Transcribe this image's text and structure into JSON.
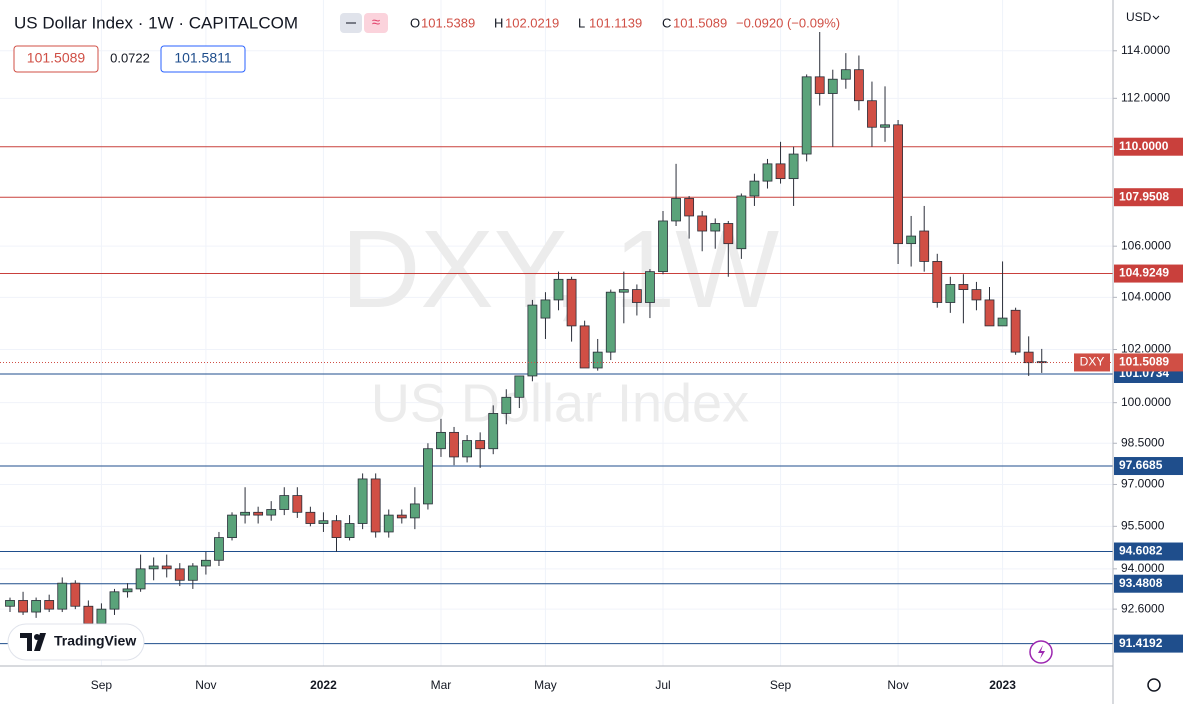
{
  "header": {
    "title": "US Dollar Index · 1W · CAPITALCOM",
    "ohlc": [
      {
        "key": "O",
        "value": "101.5389"
      },
      {
        "key": "H",
        "value": "102.0219"
      },
      {
        "key": "L",
        "value": "101.1139"
      },
      {
        "key": "C",
        "value": "101.5089"
      }
    ],
    "change": "−0.0920 (−0.09%)",
    "sell": "101.5089",
    "spread": "0.0722",
    "buy": "101.5811",
    "currency": "USD",
    "brand": "TradingView"
  },
  "chart_data": {
    "type": "candlestick",
    "watermark": "DXY, 1W",
    "watermark_sub": "US Dollar Index",
    "log_scale": true,
    "grid": true,
    "up_color": "#5aa37a",
    "down_color": "#d04f45",
    "categories": [
      null,
      null,
      null,
      null,
      null,
      null,
      null,
      "Sep",
      null,
      null,
      null,
      null,
      null,
      null,
      null,
      "Nov",
      null,
      null,
      null,
      null,
      null,
      null,
      null,
      null,
      "2022",
      null,
      null,
      null,
      null,
      null,
      null,
      null,
      null,
      "Mar",
      null,
      null,
      null,
      null,
      null,
      null,
      null,
      "May",
      null,
      null,
      null,
      null,
      null,
      null,
      null,
      null,
      "Jul",
      null,
      null,
      null,
      null,
      null,
      null,
      null,
      null,
      "Sep",
      null,
      null,
      null,
      null,
      null,
      null,
      null,
      null,
      "Nov",
      null,
      null,
      null,
      null,
      null,
      null,
      null,
      "2023",
      null,
      null,
      null
    ],
    "open": [
      92.7,
      92.9,
      92.5,
      92.9,
      92.6,
      93.5,
      92.7,
      92.1,
      92.6,
      93.2,
      93.3,
      94.0,
      94.1,
      94.0,
      93.6,
      94.1,
      94.3,
      95.1,
      95.9,
      96.0,
      95.9,
      96.1,
      96.6,
      96.0,
      95.6,
      95.7,
      95.1,
      95.6,
      97.2,
      95.3,
      95.9,
      95.8,
      96.3,
      98.3,
      98.9,
      98.0,
      98.6,
      98.3,
      99.6,
      100.2,
      101.0,
      103.2,
      103.9,
      104.7,
      102.9,
      101.3,
      101.9,
      104.2,
      104.3,
      103.8,
      105.0,
      107.0,
      107.9,
      107.2,
      106.6,
      106.9,
      105.9,
      108.0,
      108.6,
      109.3,
      108.7,
      109.7,
      112.9,
      112.2,
      112.8,
      113.2,
      111.9,
      110.8,
      110.9,
      106.1,
      106.6,
      105.4,
      103.8,
      104.5,
      104.3,
      103.9,
      102.9,
      103.5,
      101.9,
      101.5389
    ],
    "high": [
      93.0,
      93.2,
      93.0,
      93.1,
      93.7,
      93.6,
      92.9,
      92.8,
      93.3,
      93.5,
      94.5,
      94.4,
      94.5,
      94.2,
      94.2,
      94.6,
      95.3,
      96.0,
      96.9,
      96.2,
      96.4,
      96.9,
      96.9,
      96.2,
      96.0,
      95.9,
      95.9,
      97.4,
      97.4,
      96.1,
      96.1,
      96.9,
      98.5,
      99.4,
      99.1,
      98.8,
      98.9,
      99.9,
      100.5,
      101.0,
      103.9,
      104.2,
      105.0,
      104.8,
      103.1,
      102.4,
      104.3,
      105.0,
      104.5,
      105.1,
      107.4,
      109.3,
      108.0,
      107.4,
      107.1,
      107.0,
      108.1,
      108.9,
      109.5,
      110.2,
      110.0,
      113.0,
      114.8,
      113.2,
      113.9,
      113.8,
      112.7,
      112.5,
      111.1,
      107.2,
      107.6,
      105.7,
      104.8,
      104.9,
      104.6,
      104.4,
      105.4,
      103.6,
      102.5,
      102.0219
    ],
    "low": [
      92.5,
      92.4,
      92.3,
      92.5,
      92.5,
      92.6,
      92.0,
      92.0,
      92.4,
      93.0,
      93.2,
      93.6,
      93.7,
      93.4,
      93.3,
      93.8,
      94.1,
      95.0,
      95.6,
      95.6,
      95.7,
      95.9,
      95.8,
      95.5,
      95.3,
      94.6,
      95.0,
      95.4,
      95.1,
      95.1,
      95.6,
      95.4,
      96.1,
      98.0,
      97.7,
      97.8,
      97.6,
      98.1,
      99.2,
      99.8,
      100.8,
      102.4,
      103.5,
      102.3,
      101.3,
      101.2,
      101.6,
      103.0,
      103.3,
      103.2,
      104.9,
      106.8,
      106.3,
      105.8,
      105.9,
      104.8,
      105.5,
      107.6,
      108.3,
      108.5,
      107.6,
      109.4,
      111.7,
      110.0,
      112.4,
      111.5,
      110.0,
      110.2,
      105.3,
      105.2,
      105.0,
      103.6,
      103.4,
      103.0,
      103.5,
      102.9,
      102.9,
      101.8,
      101.0,
      101.1139
    ],
    "close": [
      92.9,
      92.5,
      92.9,
      92.6,
      93.5,
      92.7,
      92.1,
      92.6,
      93.2,
      93.3,
      94.0,
      94.1,
      94.0,
      93.6,
      94.1,
      94.3,
      95.1,
      95.9,
      96.0,
      95.9,
      96.1,
      96.6,
      96.0,
      95.6,
      95.7,
      95.1,
      95.6,
      97.2,
      95.3,
      95.9,
      95.8,
      96.3,
      98.3,
      98.9,
      98.0,
      98.6,
      98.3,
      99.6,
      100.2,
      101.0,
      103.7,
      103.9,
      104.7,
      102.9,
      101.3,
      101.9,
      104.2,
      104.3,
      103.8,
      105.0,
      107.0,
      107.9,
      107.2,
      106.6,
      106.9,
      106.1,
      108.0,
      108.6,
      109.3,
      108.7,
      109.7,
      112.9,
      112.2,
      112.8,
      113.2,
      111.9,
      110.8,
      110.9,
      106.1,
      106.4,
      105.4,
      103.8,
      104.5,
      104.3,
      103.9,
      102.9,
      103.2,
      101.9,
      101.5,
      101.5089
    ],
    "ylim": [
      90.66,
      115.96
    ],
    "yticks": [
      {
        "value": 92.6,
        "label": "92.6000"
      },
      {
        "value": 94,
        "label": "94.0000"
      },
      {
        "value": 95.5,
        "label": "95.5000"
      },
      {
        "value": 97,
        "label": "97.0000"
      },
      {
        "value": 98.5,
        "label": "98.5000"
      },
      {
        "value": 100,
        "label": "100.0000"
      },
      {
        "value": 102,
        "label": "102.0000"
      },
      {
        "value": 104,
        "label": "104.0000"
      },
      {
        "value": 106,
        "label": "106.0000"
      },
      {
        "value": 112,
        "label": "112.0000"
      },
      {
        "value": 114,
        "label": "114.0000"
      }
    ],
    "levels": [
      {
        "value": 110,
        "label": "110.0000",
        "color": "#c9403c"
      },
      {
        "value": 107.9508,
        "label": "107.9508",
        "color": "#c9403c"
      },
      {
        "value": 104.9249,
        "label": "104.9249",
        "color": "#c9403c"
      },
      {
        "value": 101.0734,
        "label": "101.0734",
        "color": "#1f4e8c"
      },
      {
        "value": 97.6685,
        "label": "97.6685",
        "color": "#1f4e8c"
      },
      {
        "value": 94.6082,
        "label": "94.6082",
        "color": "#1f4e8c"
      },
      {
        "value": 93.4808,
        "label": "93.4808",
        "color": "#1f4e8c"
      },
      {
        "value": 91.4192,
        "label": "91.4192",
        "color": "#1f4e8c"
      }
    ],
    "last": {
      "name": "DXY",
      "value": 101.5089,
      "label": "101.5089",
      "color": "#d04f45"
    }
  }
}
